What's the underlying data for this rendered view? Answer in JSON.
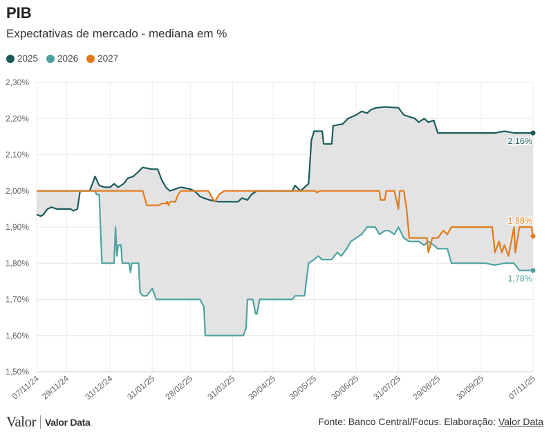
{
  "header": {
    "title": "PIB",
    "subtitle": "Expectativas de mercado - mediana em %"
  },
  "legend": [
    {
      "label": "2025",
      "color": "#1a5c5a"
    },
    {
      "label": "2026",
      "color": "#4da3a0"
    },
    {
      "label": "2027",
      "color": "#e07b1a"
    }
  ],
  "footer": {
    "logo_main": "Valor",
    "logo_data": "Valor Data",
    "source_prefix": "Fonte: Banco Central/Focus. Elaboração: ",
    "source_link": "Valor Data"
  },
  "chart_data": {
    "type": "line",
    "y_format": "percent-comma",
    "ylim": [
      1.5,
      2.3
    ],
    "y_ticks": [
      "1,50%",
      "1,60%",
      "1,70%",
      "1,80%",
      "1,90%",
      "2,00%",
      "2,10%",
      "2,20%",
      "2,30%"
    ],
    "y_tick_values": [
      1.5,
      1.6,
      1.7,
      1.8,
      1.9,
      2.0,
      2.1,
      2.2,
      2.3
    ],
    "x_ticks": [
      "07/11/24",
      "29/11/24",
      "31/12/24",
      "31/01/25",
      "28/02/25",
      "31/03/25",
      "30/04/25",
      "30/05/25",
      "30/06/25",
      "31/07/25",
      "29/08/25",
      "30/09/25",
      "07/11/25"
    ],
    "x_tick_dates": [
      "2024-11-07",
      "2024-11-29",
      "2024-12-31",
      "2025-01-31",
      "2025-02-28",
      "2025-03-31",
      "2025-04-30",
      "2025-05-30",
      "2025-06-30",
      "2025-07-31",
      "2025-08-29",
      "2025-09-30",
      "2025-11-07"
    ],
    "grid": true,
    "band_fill": "#e3e3e3",
    "series": [
      {
        "name": "2025",
        "color": "#1a5c5a",
        "end_label": "2,16%",
        "points": [
          [
            "2024-11-07",
            1.935
          ],
          [
            "2024-11-10",
            1.93
          ],
          [
            "2024-11-12",
            1.935
          ],
          [
            "2024-11-15",
            1.95
          ],
          [
            "2024-11-18",
            1.955
          ],
          [
            "2024-11-22",
            1.95
          ],
          [
            "2024-11-29",
            1.95
          ],
          [
            "2024-12-02",
            1.95
          ],
          [
            "2024-12-04",
            1.945
          ],
          [
            "2024-12-07",
            1.95
          ],
          [
            "2024-12-09",
            2.0
          ],
          [
            "2024-12-16",
            2.0
          ],
          [
            "2024-12-18",
            2.02
          ],
          [
            "2024-12-20",
            2.04
          ],
          [
            "2024-12-23",
            2.015
          ],
          [
            "2024-12-27",
            2.01
          ],
          [
            "2024-12-31",
            2.01
          ],
          [
            "2025-01-03",
            2.02
          ],
          [
            "2025-01-06",
            2.01
          ],
          [
            "2025-01-10",
            2.02
          ],
          [
            "2025-01-13",
            2.035
          ],
          [
            "2025-01-17",
            2.04
          ],
          [
            "2025-01-20",
            2.05
          ],
          [
            "2025-01-24",
            2.065
          ],
          [
            "2025-01-31",
            2.06
          ],
          [
            "2025-02-04",
            2.06
          ],
          [
            "2025-02-07",
            2.03
          ],
          [
            "2025-02-10",
            2.01
          ],
          [
            "2025-02-13",
            2.0
          ],
          [
            "2025-02-17",
            2.005
          ],
          [
            "2025-02-21",
            2.01
          ],
          [
            "2025-02-28",
            2.005
          ],
          [
            "2025-03-03",
            2.0
          ],
          [
            "2025-03-07",
            1.985
          ],
          [
            "2025-03-10",
            1.98
          ],
          [
            "2025-03-14",
            1.975
          ],
          [
            "2025-03-21",
            1.97
          ],
          [
            "2025-03-28",
            1.97
          ],
          [
            "2025-04-04",
            1.97
          ],
          [
            "2025-04-07",
            1.98
          ],
          [
            "2025-04-11",
            1.975
          ],
          [
            "2025-04-14",
            1.99
          ],
          [
            "2025-04-18",
            2.0
          ],
          [
            "2025-05-14",
            2.0
          ],
          [
            "2025-05-16",
            2.015
          ],
          [
            "2025-05-20",
            2.0
          ],
          [
            "2025-05-23",
            2.01
          ],
          [
            "2025-05-26",
            2.02
          ],
          [
            "2025-05-28",
            2.14
          ],
          [
            "2025-05-30",
            2.165
          ],
          [
            "2025-06-05",
            2.165
          ],
          [
            "2025-06-06",
            2.13
          ],
          [
            "2025-06-12",
            2.13
          ],
          [
            "2025-06-13",
            2.18
          ],
          [
            "2025-06-20",
            2.185
          ],
          [
            "2025-06-24",
            2.2
          ],
          [
            "2025-06-30",
            2.21
          ],
          [
            "2025-07-04",
            2.22
          ],
          [
            "2025-07-08",
            2.215
          ],
          [
            "2025-07-11",
            2.225
          ],
          [
            "2025-07-15",
            2.23
          ],
          [
            "2025-07-21",
            2.232
          ],
          [
            "2025-07-31",
            2.23
          ],
          [
            "2025-08-04",
            2.21
          ],
          [
            "2025-08-08",
            2.205
          ],
          [
            "2025-08-12",
            2.2
          ],
          [
            "2025-08-15",
            2.19
          ],
          [
            "2025-08-19",
            2.2
          ],
          [
            "2025-08-22",
            2.19
          ],
          [
            "2025-08-26",
            2.195
          ],
          [
            "2025-08-29",
            2.16
          ],
          [
            "2025-09-05",
            2.16
          ],
          [
            "2025-09-30",
            2.16
          ],
          [
            "2025-10-10",
            2.16
          ],
          [
            "2025-10-17",
            2.165
          ],
          [
            "2025-10-24",
            2.16
          ],
          [
            "2025-11-07",
            2.16
          ]
        ]
      },
      {
        "name": "2026",
        "color": "#4da3a0",
        "end_label": "1,78%",
        "points": [
          [
            "2024-11-07",
            2.0
          ],
          [
            "2024-12-20",
            2.0
          ],
          [
            "2024-12-21",
            1.99
          ],
          [
            "2024-12-23",
            1.99
          ],
          [
            "2024-12-25",
            1.8
          ],
          [
            "2024-12-31",
            1.8
          ],
          [
            "2025-01-03",
            1.8
          ],
          [
            "2025-01-04",
            1.9
          ],
          [
            "2025-01-05",
            1.82
          ],
          [
            "2025-01-06",
            1.85
          ],
          [
            "2025-01-08",
            1.85
          ],
          [
            "2025-01-09",
            1.8
          ],
          [
            "2025-01-14",
            1.8
          ],
          [
            "2025-01-15",
            1.775
          ],
          [
            "2025-01-16",
            1.8
          ],
          [
            "2025-01-21",
            1.8
          ],
          [
            "2025-01-22",
            1.72
          ],
          [
            "2025-01-24",
            1.71
          ],
          [
            "2025-01-27",
            1.71
          ],
          [
            "2025-01-29",
            1.72
          ],
          [
            "2025-01-31",
            1.73
          ],
          [
            "2025-02-03",
            1.7
          ],
          [
            "2025-03-07",
            1.7
          ],
          [
            "2025-03-10",
            1.68
          ],
          [
            "2025-03-11",
            1.6
          ],
          [
            "2025-04-08",
            1.6
          ],
          [
            "2025-04-10",
            1.62
          ],
          [
            "2025-04-11",
            1.7
          ],
          [
            "2025-04-15",
            1.7
          ],
          [
            "2025-04-17",
            1.66
          ],
          [
            "2025-04-18",
            1.66
          ],
          [
            "2025-04-20",
            1.7
          ],
          [
            "2025-04-30",
            1.7
          ],
          [
            "2025-05-14",
            1.7
          ],
          [
            "2025-05-16",
            1.71
          ],
          [
            "2025-05-20",
            1.71
          ],
          [
            "2025-05-23",
            1.71
          ],
          [
            "2025-05-26",
            1.8
          ],
          [
            "2025-05-30",
            1.81
          ],
          [
            "2025-06-02",
            1.82
          ],
          [
            "2025-06-05",
            1.81
          ],
          [
            "2025-06-12",
            1.81
          ],
          [
            "2025-06-16",
            1.83
          ],
          [
            "2025-06-19",
            1.82
          ],
          [
            "2025-06-23",
            1.84
          ],
          [
            "2025-06-26",
            1.86
          ],
          [
            "2025-06-30",
            1.87
          ],
          [
            "2025-07-04",
            1.88
          ],
          [
            "2025-07-08",
            1.9
          ],
          [
            "2025-07-14",
            1.9
          ],
          [
            "2025-07-17",
            1.88
          ],
          [
            "2025-07-21",
            1.89
          ],
          [
            "2025-07-24",
            1.89
          ],
          [
            "2025-07-28",
            1.88
          ],
          [
            "2025-07-31",
            1.9
          ],
          [
            "2025-08-04",
            1.87
          ],
          [
            "2025-08-08",
            1.86
          ],
          [
            "2025-08-15",
            1.86
          ],
          [
            "2025-08-19",
            1.85
          ],
          [
            "2025-08-22",
            1.86
          ],
          [
            "2025-08-26",
            1.85
          ],
          [
            "2025-08-29",
            1.84
          ],
          [
            "2025-09-05",
            1.84
          ],
          [
            "2025-09-08",
            1.8
          ],
          [
            "2025-09-30",
            1.8
          ],
          [
            "2025-10-03",
            1.8
          ],
          [
            "2025-10-10",
            1.795
          ],
          [
            "2025-10-17",
            1.8
          ],
          [
            "2025-10-24",
            1.8
          ],
          [
            "2025-10-28",
            1.78
          ],
          [
            "2025-11-07",
            1.78
          ]
        ]
      },
      {
        "name": "2027",
        "color": "#e07b1a",
        "end_label": "1,88%",
        "points": [
          [
            "2024-11-07",
            2.0
          ],
          [
            "2025-01-24",
            2.0
          ],
          [
            "2025-01-27",
            1.96
          ],
          [
            "2025-02-05",
            1.96
          ],
          [
            "2025-02-07",
            1.965
          ],
          [
            "2025-02-10",
            1.965
          ],
          [
            "2025-02-11",
            1.97
          ],
          [
            "2025-02-12",
            1.96
          ],
          [
            "2025-02-13",
            1.97
          ],
          [
            "2025-02-17",
            1.97
          ],
          [
            "2025-02-19",
            1.99
          ],
          [
            "2025-02-21",
            2.0
          ],
          [
            "2025-03-13",
            2.0
          ],
          [
            "2025-03-14",
            1.995
          ],
          [
            "2025-03-18",
            1.97
          ],
          [
            "2025-03-21",
            1.99
          ],
          [
            "2025-03-25",
            2.0
          ],
          [
            "2025-05-31",
            2.0
          ],
          [
            "2025-06-01",
            1.995
          ],
          [
            "2025-06-03",
            2.0
          ],
          [
            "2025-07-17",
            2.0
          ],
          [
            "2025-07-18",
            1.975
          ],
          [
            "2025-07-21",
            1.975
          ],
          [
            "2025-07-22",
            2.0
          ],
          [
            "2025-07-28",
            2.0
          ],
          [
            "2025-07-31",
            1.95
          ],
          [
            "2025-08-01",
            2.0
          ],
          [
            "2025-08-04",
            2.0
          ],
          [
            "2025-08-06",
            1.95
          ],
          [
            "2025-08-08",
            1.87
          ],
          [
            "2025-08-21",
            1.87
          ],
          [
            "2025-08-22",
            1.83
          ],
          [
            "2025-08-25",
            1.87
          ],
          [
            "2025-08-29",
            1.87
          ],
          [
            "2025-09-02",
            1.89
          ],
          [
            "2025-09-05",
            1.88
          ],
          [
            "2025-09-08",
            1.9
          ],
          [
            "2025-09-30",
            1.9
          ],
          [
            "2025-10-08",
            1.9
          ],
          [
            "2025-10-10",
            1.83
          ],
          [
            "2025-10-13",
            1.86
          ],
          [
            "2025-10-15",
            1.83
          ],
          [
            "2025-10-17",
            1.85
          ],
          [
            "2025-10-20",
            1.82
          ],
          [
            "2025-10-22",
            1.86
          ],
          [
            "2025-10-24",
            1.9
          ],
          [
            "2025-10-25",
            1.83
          ],
          [
            "2025-10-28",
            1.9
          ],
          [
            "2025-11-06",
            1.9
          ],
          [
            "2025-11-07",
            1.875
          ]
        ]
      }
    ]
  }
}
